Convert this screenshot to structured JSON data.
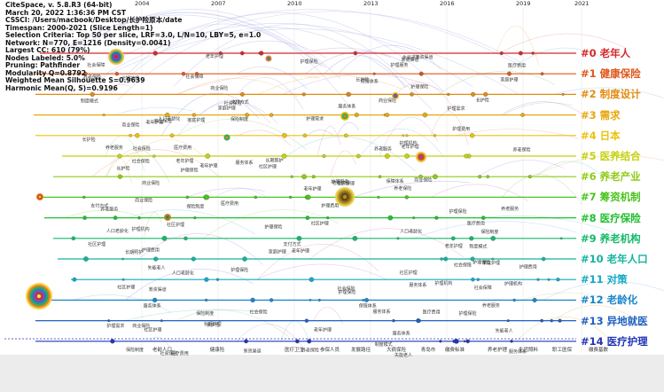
{
  "header": {
    "lines": [
      "CiteSpace, v. 5.8.R3 (64-bit)",
      "March 20, 2022 1:36:36 PM CST",
      "CSSCI: /Users/macbook/Desktop/长护险原本/date",
      "Timespan: 2000-2021 (Slice Length=1)",
      "Selection Criteria: Top 50 per slice, LRF=3.0, L/N=10, LBY=5, e=1.0",
      "Network: N=770, E=1216 (Density=0.0041)",
      "Largest CC: 610 (79%)",
      "Nodes Labeled: 5.0%",
      "Pruning: Pathfinder",
      "Modularity Q=0.8792",
      "Weighted Mean Silhouette S=0.9639",
      "Harmonic Mean(Q, S)=0.9196"
    ]
  },
  "years": [
    "2004",
    "2007",
    "2010",
    "2013",
    "2016",
    "2019",
    "2021"
  ],
  "clusters": [
    {
      "label": "#0 老年人",
      "color": "#d62728"
    },
    {
      "label": "#1 健康保险",
      "color": "#e0561a"
    },
    {
      "label": "#2 制度设计",
      "color": "#e38b12"
    },
    {
      "label": "#3 需求",
      "color": "#e6a80f"
    },
    {
      "label": "#4 日本",
      "color": "#e8c20c"
    },
    {
      "label": "#5 医养结合",
      "color": "#c5d10e"
    },
    {
      "label": "#6 养老产业",
      "color": "#8ccc14"
    },
    {
      "label": "#7 筹资机制",
      "color": "#49c41b"
    },
    {
      "label": "#8 医疗保险",
      "color": "#1fbf30"
    },
    {
      "label": "#9 养老机构",
      "color": "#14b86a"
    },
    {
      "label": "#10 老年人口",
      "color": "#12b3a0"
    },
    {
      "label": "#11 对策",
      "color": "#14a8c4"
    },
    {
      "label": "#12 老龄化",
      "color": "#1a86c9"
    },
    {
      "label": "#13 异地就医",
      "color": "#1e5fc2"
    },
    {
      "label": "#14 医疗护理",
      "color": "#2234b8"
    }
  ],
  "bottom_labels": [
    "老龄人口",
    "健康险",
    "医疗卫生",
    "参保人员",
    "发展路径",
    "大病保险",
    "青岛市",
    "缴费标准",
    "养老护理",
    "生活照料",
    "职工医保",
    "缴费基数"
  ],
  "node_labels": [
    "护理保险",
    "长期照护",
    "医疗费用",
    "社会保险",
    "商业保险",
    "失能老人",
    "家庭护理",
    "养老服务",
    "护理需求",
    "社区护理",
    "老年护理",
    "护理服务",
    "筹资渠道",
    "保险制度",
    "社会保障",
    "制度建设",
    "护理费用",
    "养老保险",
    "人口老龄化",
    "保障体系",
    "服务体系",
    "支付方式",
    "长期护理",
    "老年护理",
    "护理机构",
    "制度模式",
    "长护险"
  ]
}
